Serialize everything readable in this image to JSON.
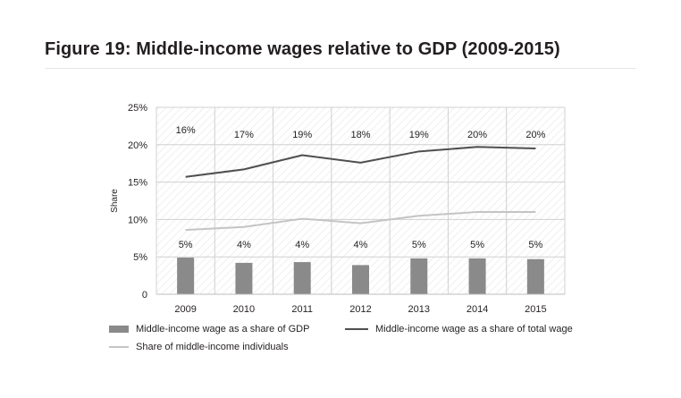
{
  "figure": {
    "title": "Figure 19: Middle-income wages relative to GDP (2009-2015)"
  },
  "colors": {
    "bar": "#8a8a8a",
    "line_total_wage": "#4f4f4f",
    "line_individuals": "#c4c4c4",
    "grid": "#d0d0d0"
  },
  "chart_data": {
    "type": "bar",
    "categories": [
      "2009",
      "2010",
      "2011",
      "2012",
      "2013",
      "2014",
      "2015"
    ],
    "ylabel": "Share",
    "xlabel": "",
    "ylim": [
      0,
      0.25
    ],
    "yticks": [
      {
        "value": 0,
        "label": "0"
      },
      {
        "value": 0.05,
        "label": "5%"
      },
      {
        "value": 0.1,
        "label": "10%"
      },
      {
        "value": 0.15,
        "label": "15%"
      },
      {
        "value": 0.2,
        "label": "20%"
      },
      {
        "value": 0.25,
        "label": "25%"
      }
    ],
    "grid": true,
    "legend_position": "bottom",
    "series": [
      {
        "name": "Middle-income wage as a share of GDP",
        "kind": "bar",
        "values": [
          0.049,
          0.042,
          0.043,
          0.039,
          0.048,
          0.048,
          0.047
        ],
        "labels": [
          "5%",
          "4%",
          "4%",
          "4%",
          "5%",
          "5%",
          "5%"
        ]
      },
      {
        "name": "Middle-income wage as a share of total wage",
        "kind": "line",
        "values": [
          0.157,
          0.167,
          0.186,
          0.176,
          0.191,
          0.197,
          0.195
        ],
        "labels": [
          "16%",
          "17%",
          "19%",
          "18%",
          "19%",
          "20%",
          "20%"
        ]
      },
      {
        "name": "Share of middle-income individuals",
        "kind": "line",
        "values": [
          0.086,
          0.09,
          0.101,
          0.095,
          0.105,
          0.11,
          0.11
        ]
      }
    ]
  }
}
